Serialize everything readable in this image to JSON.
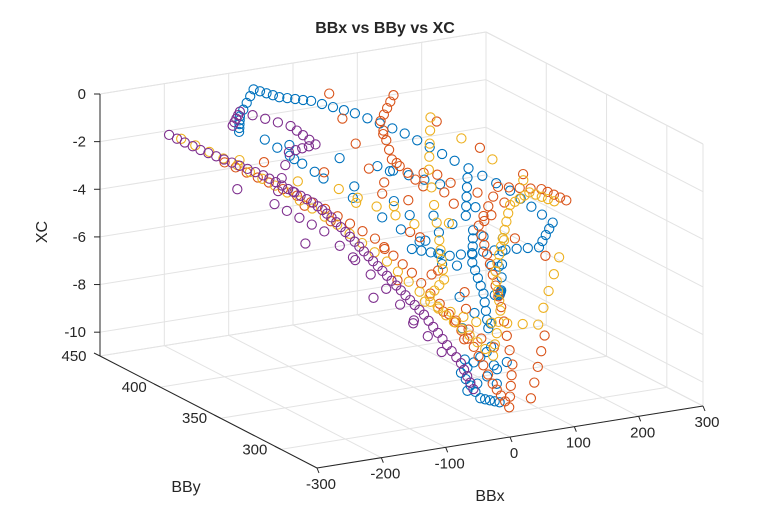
{
  "figure": {
    "title": "BBx vs BBy vs XC"
  },
  "chart_data": {
    "type": "scatter",
    "title": "BBx vs BBy vs XC",
    "xlabel": "BBx",
    "ylabel": "BBy",
    "zlabel": "XC",
    "xlim": [
      -300,
      300
    ],
    "ylim": [
      270,
      450
    ],
    "zlim": [
      -11,
      0
    ],
    "x_ticks": [
      "-300",
      "-200",
      "-100",
      "0",
      "100",
      "200",
      "300"
    ],
    "y_ticks": [
      "300",
      "350",
      "400",
      "450"
    ],
    "z_ticks": [
      "0",
      "-2",
      "-4",
      "-6",
      "-8",
      "-10"
    ],
    "grid": true,
    "marker": "open-circle",
    "colors": [
      "#0072BD",
      "#D95319",
      "#EDB120",
      "#7E2F8E"
    ],
    "series": [
      {
        "color": "#0072BD",
        "points": [
          [
            -120,
            430,
            -1.2
          ],
          [
            -80,
            440,
            -0.5
          ],
          [
            -40,
            440,
            -1.0
          ],
          [
            0,
            435,
            -1.2
          ],
          [
            40,
            420,
            -1.5
          ],
          [
            80,
            400,
            -2.0
          ],
          [
            120,
            380,
            -2.8
          ],
          [
            150,
            350,
            -3.4
          ],
          [
            160,
            320,
            -4.0
          ],
          [
            120,
            310,
            -4.6
          ],
          [
            60,
            315,
            -4.6
          ],
          [
            0,
            320,
            -4.7
          ],
          [
            -40,
            330,
            -4.5
          ],
          [
            100,
            360,
            -4.5
          ],
          [
            140,
            380,
            -3.6
          ],
          [
            40,
            300,
            -6.0
          ],
          [
            80,
            320,
            -6.5
          ],
          [
            120,
            340,
            -5.0
          ],
          [
            20,
            300,
            -8.3
          ],
          [
            -20,
            300,
            -9.0
          ],
          [
            10,
            300,
            -10.2
          ],
          [
            40,
            300,
            -10.5
          ],
          [
            60,
            320,
            -8.0
          ],
          [
            90,
            340,
            -7.2
          ],
          [
            110,
            360,
            -6.5
          ],
          [
            130,
            370,
            -5.5
          ],
          [
            -60,
            400,
            -3.0
          ],
          [
            -100,
            420,
            -2.0
          ],
          [
            -30,
            360,
            -4.0
          ],
          [
            30,
            330,
            -5.5
          ],
          [
            -10,
            300,
            -9.8
          ],
          [
            70,
            310,
            -9.2
          ],
          [
            0,
            380,
            -2.5
          ],
          [
            60,
            360,
            -3.0
          ],
          [
            -140,
            420,
            -1.5
          ]
        ]
      },
      {
        "color": "#D95319",
        "points": [
          [
            -200,
            400,
            -2.0
          ],
          [
            -150,
            390,
            -2.8
          ],
          [
            -100,
            370,
            -3.6
          ],
          [
            -60,
            350,
            -4.5
          ],
          [
            -40,
            330,
            -5.5
          ],
          [
            -20,
            310,
            -6.8
          ],
          [
            0,
            300,
            -8.0
          ],
          [
            20,
            295,
            -9.5
          ],
          [
            40,
            292,
            -10.5
          ],
          [
            60,
            300,
            -9.0
          ],
          [
            80,
            320,
            -7.2
          ],
          [
            100,
            340,
            -6.0
          ],
          [
            120,
            360,
            -5.0
          ],
          [
            150,
            360,
            -3.5
          ],
          [
            180,
            340,
            -3.2
          ],
          [
            200,
            330,
            -3.5
          ],
          [
            100,
            420,
            -1.0
          ],
          [
            80,
            420,
            -2.0
          ],
          [
            60,
            400,
            -3.0
          ],
          [
            90,
            390,
            -4.0
          ],
          [
            130,
            310,
            -5.0
          ],
          [
            0,
            420,
            -0.5
          ],
          [
            -30,
            360,
            -3.0
          ],
          [
            50,
            310,
            -8.5
          ],
          [
            -10,
            320,
            -7.0
          ],
          [
            30,
            380,
            -2.5
          ],
          [
            160,
            360,
            -4.2
          ],
          [
            -120,
            410,
            -2.6
          ],
          [
            70,
            290,
            -10.2
          ],
          [
            110,
            300,
            -8.0
          ]
        ]
      },
      {
        "color": "#EDB120",
        "points": [
          [
            -230,
            420,
            -1.4
          ],
          [
            -180,
            400,
            -2.2
          ],
          [
            -140,
            380,
            -3.0
          ],
          [
            -100,
            360,
            -4.0
          ],
          [
            -60,
            340,
            -5.2
          ],
          [
            -30,
            320,
            -6.5
          ],
          [
            0,
            310,
            -7.5
          ],
          [
            30,
            300,
            -8.5
          ],
          [
            60,
            310,
            -7.0
          ],
          [
            90,
            330,
            -6.0
          ],
          [
            120,
            340,
            -5.0
          ],
          [
            150,
            350,
            -4.0
          ],
          [
            180,
            350,
            -3.6
          ],
          [
            200,
            340,
            -3.8
          ],
          [
            120,
            400,
            -1.5
          ],
          [
            80,
            380,
            -3.0
          ],
          [
            40,
            350,
            -5.0
          ],
          [
            10,
            330,
            -6.0
          ],
          [
            -20,
            330,
            -6.8
          ],
          [
            60,
            330,
            -8.0
          ],
          [
            100,
            300,
            -7.5
          ],
          [
            170,
            320,
            -5.5
          ],
          [
            -60,
            380,
            -3.2
          ],
          [
            20,
            360,
            -4.5
          ]
        ]
      },
      {
        "color": "#7E2F8E",
        "points": [
          [
            -230,
            430,
            -1.5
          ],
          [
            -200,
            420,
            -2.0
          ],
          [
            -170,
            410,
            -2.4
          ],
          [
            -140,
            400,
            -2.8
          ],
          [
            -120,
            390,
            -3.2
          ],
          [
            -100,
            380,
            -3.6
          ],
          [
            -90,
            370,
            -4.0
          ],
          [
            -80,
            360,
            -4.6
          ],
          [
            -70,
            350,
            -5.2
          ],
          [
            -60,
            340,
            -5.8
          ],
          [
            -50,
            330,
            -6.4
          ],
          [
            -40,
            320,
            -7.0
          ],
          [
            -30,
            310,
            -7.8
          ],
          [
            -20,
            300,
            -8.6
          ],
          [
            -10,
            295,
            -9.6
          ],
          [
            -150,
            420,
            -1.2
          ],
          [
            -120,
            430,
            -1.0
          ],
          [
            -60,
            420,
            -1.6
          ],
          [
            -40,
            410,
            -2.2
          ],
          [
            -100,
            400,
            -2.0
          ],
          [
            -160,
            380,
            -3.4
          ],
          [
            -120,
            360,
            -4.2
          ],
          [
            -80,
            330,
            -6.0
          ],
          [
            -50,
            300,
            -8.0
          ]
        ]
      }
    ]
  }
}
